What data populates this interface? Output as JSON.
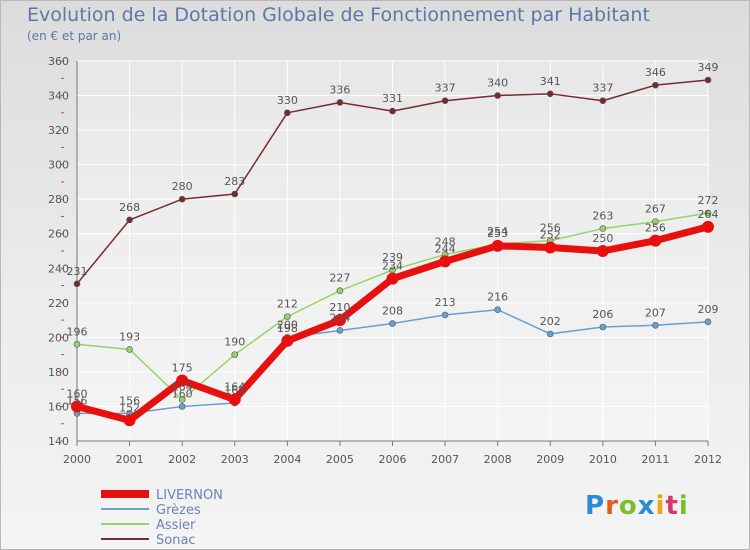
{
  "title": "Evolution de la Dotation Globale de Fonctionnement par Habitant",
  "subtitle": "(en € et par an)",
  "logo": {
    "text": "Proxiti",
    "letters": [
      "P",
      "r",
      "o",
      "x",
      "i",
      "t",
      "i"
    ],
    "colors": [
      "#2a8bd6",
      "#e85a1c",
      "#7cbf2a",
      "#2a8bd6",
      "#f2a20c",
      "#d63a6c",
      "#7cbf2a"
    ]
  },
  "chart_data": {
    "type": "line",
    "title": "Evolution de la Dotation Globale de Fonctionnement par Habitant",
    "subtitle": "(en € et par an)",
    "xlabel": "",
    "ylabel": "",
    "x": [
      "2000",
      "2001",
      "2002",
      "2003",
      "2004",
      "2005",
      "2006",
      "2007",
      "2008",
      "2009",
      "2010",
      "2011",
      "2012"
    ],
    "ylim": [
      140,
      360
    ],
    "yticks": [
      140,
      160,
      180,
      200,
      220,
      240,
      260,
      280,
      300,
      320,
      340,
      360
    ],
    "grid": true,
    "legend_position": "bottom-left",
    "series": [
      {
        "name": "LIVERNON",
        "color": "#e8100f",
        "values": [
          160,
          152,
          175,
          164,
          198,
          210,
          234,
          244,
          253,
          252,
          250,
          256,
          264
        ]
      },
      {
        "name": "Grèzes",
        "color": "#6a9fd2",
        "values": [
          156,
          156,
          160,
          162,
          200,
          204,
          208,
          213,
          216,
          202,
          206,
          207,
          209
        ]
      },
      {
        "name": "Assier",
        "color": "#95d46a",
        "values": [
          196,
          193,
          164,
          190,
          212,
          227,
          239,
          248,
          254,
          256,
          263,
          267,
          272
        ]
      },
      {
        "name": "Sonac",
        "color": "#7a2a2e",
        "values": [
          231,
          268,
          280,
          283,
          330,
          336,
          331,
          337,
          340,
          341,
          337,
          346,
          349
        ]
      }
    ]
  }
}
